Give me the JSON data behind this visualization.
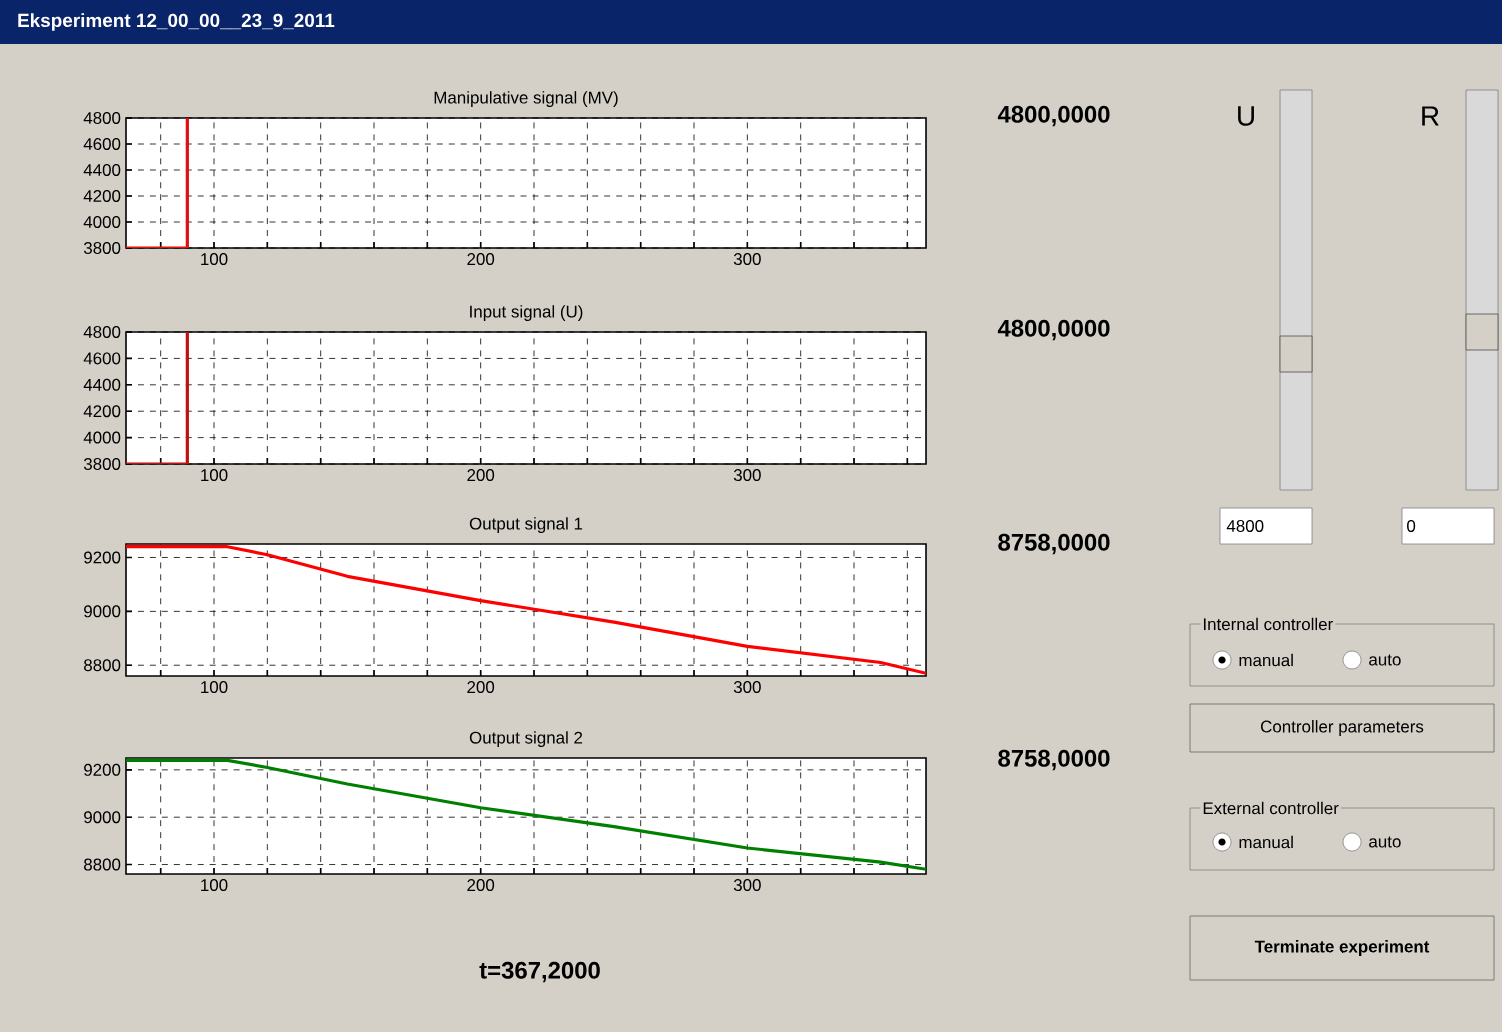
{
  "chart_data": [
    {
      "type": "line",
      "title": "Manipulative signal (MV)",
      "x": [
        67,
        90,
        90
      ],
      "series": [
        {
          "color": "#e01010",
          "values": [
            3800,
            3800,
            4800
          ]
        }
      ],
      "xlim": [
        67,
        367
      ],
      "ylim": [
        3800,
        4800
      ],
      "xticks": [
        {
          "value": 80,
          "label": null
        },
        100,
        {
          "value": 120,
          "label": null
        },
        {
          "value": 140,
          "label": null
        },
        {
          "value": 160,
          "label": null
        },
        {
          "value": 180,
          "label": null
        },
        200,
        {
          "value": 220,
          "label": null
        },
        {
          "value": 240,
          "label": null
        },
        {
          "value": 260,
          "label": null
        },
        {
          "value": 280,
          "label": null
        },
        300,
        {
          "value": 320,
          "label": null
        },
        {
          "value": 340,
          "label": null
        },
        {
          "value": 360,
          "label": null
        }
      ],
      "yticks": [
        3800,
        4000,
        4200,
        4400,
        4600,
        4800
      ],
      "grid": true
    },
    {
      "type": "line",
      "title": "Input signal (U)",
      "x": [
        67,
        90,
        90
      ],
      "series": [
        {
          "color": "#c01010",
          "values": [
            3800,
            3800,
            4800
          ]
        }
      ],
      "xlim": [
        67,
        367
      ],
      "ylim": [
        3800,
        4800
      ],
      "xticks": [
        {
          "value": 80,
          "label": null
        },
        100,
        {
          "value": 120,
          "label": null
        },
        {
          "value": 140,
          "label": null
        },
        {
          "value": 160,
          "label": null
        },
        {
          "value": 180,
          "label": null
        },
        200,
        {
          "value": 220,
          "label": null
        },
        {
          "value": 240,
          "label": null
        },
        {
          "value": 260,
          "label": null
        },
        {
          "value": 280,
          "label": null
        },
        300,
        {
          "value": 320,
          "label": null
        },
        {
          "value": 340,
          "label": null
        },
        {
          "value": 360,
          "label": null
        }
      ],
      "yticks": [
        3800,
        4000,
        4200,
        4400,
        4600,
        4800
      ],
      "grid": true
    },
    {
      "type": "line",
      "title": "Output signal 1",
      "x": [
        67,
        80,
        100,
        105,
        120,
        150,
        200,
        250,
        300,
        350,
        367
      ],
      "series": [
        {
          "color": "#ff0000",
          "values": [
            9240,
            9240,
            9240,
            9240,
            9210,
            9130,
            9040,
            8960,
            8870,
            8810,
            8770
          ]
        }
      ],
      "xlim": [
        67,
        367
      ],
      "ylim": [
        8760,
        9250
      ],
      "xticks": [
        {
          "value": 80,
          "label": null
        },
        100,
        {
          "value": 120,
          "label": null
        },
        {
          "value": 140,
          "label": null
        },
        {
          "value": 160,
          "label": null
        },
        {
          "value": 180,
          "label": null
        },
        200,
        {
          "value": 220,
          "label": null
        },
        {
          "value": 240,
          "label": null
        },
        {
          "value": 260,
          "label": null
        },
        {
          "value": 280,
          "label": null
        },
        300,
        {
          "value": 320,
          "label": null
        },
        {
          "value": 340,
          "label": null
        },
        {
          "value": 360,
          "label": null
        }
      ],
      "yticks": [
        8800,
        9000,
        9200
      ],
      "grid": true
    },
    {
      "type": "line",
      "title": "Output signal 2",
      "x": [
        67,
        80,
        100,
        105,
        120,
        150,
        200,
        250,
        300,
        350,
        367
      ],
      "series": [
        {
          "color": "#008000",
          "values": [
            9240,
            9240,
            9240,
            9240,
            9210,
            9140,
            9040,
            8960,
            8870,
            8810,
            8780
          ]
        }
      ],
      "xlim": [
        67,
        367
      ],
      "ylim": [
        8760,
        9250
      ],
      "xticks": [
        {
          "value": 80,
          "label": null
        },
        100,
        {
          "value": 120,
          "label": null
        },
        {
          "value": 140,
          "label": null
        },
        {
          "value": 160,
          "label": null
        },
        {
          "value": 180,
          "label": null
        },
        200,
        {
          "value": 220,
          "label": null
        },
        {
          "value": 240,
          "label": null
        },
        {
          "value": 260,
          "label": null
        },
        {
          "value": 280,
          "label": null
        },
        300,
        {
          "value": 320,
          "label": null
        },
        {
          "value": 340,
          "label": null
        },
        {
          "value": 360,
          "label": null
        }
      ],
      "yticks": [
        8800,
        9000,
        9200
      ],
      "grid": true
    },
    {
      "type": "other",
      "title": "Eksperiment 12_00_00__23_9_2011",
      "annotations": [
        "4800,0000",
        "4800,0000",
        "8758,0000",
        "8758,0000",
        "t=367,2000",
        "U",
        "R",
        "4800",
        "0",
        "Internal controller",
        "manual",
        "auto",
        "Controller parameters",
        "External controller",
        "manual",
        "auto",
        "Terminate experiment"
      ]
    }
  ]
}
